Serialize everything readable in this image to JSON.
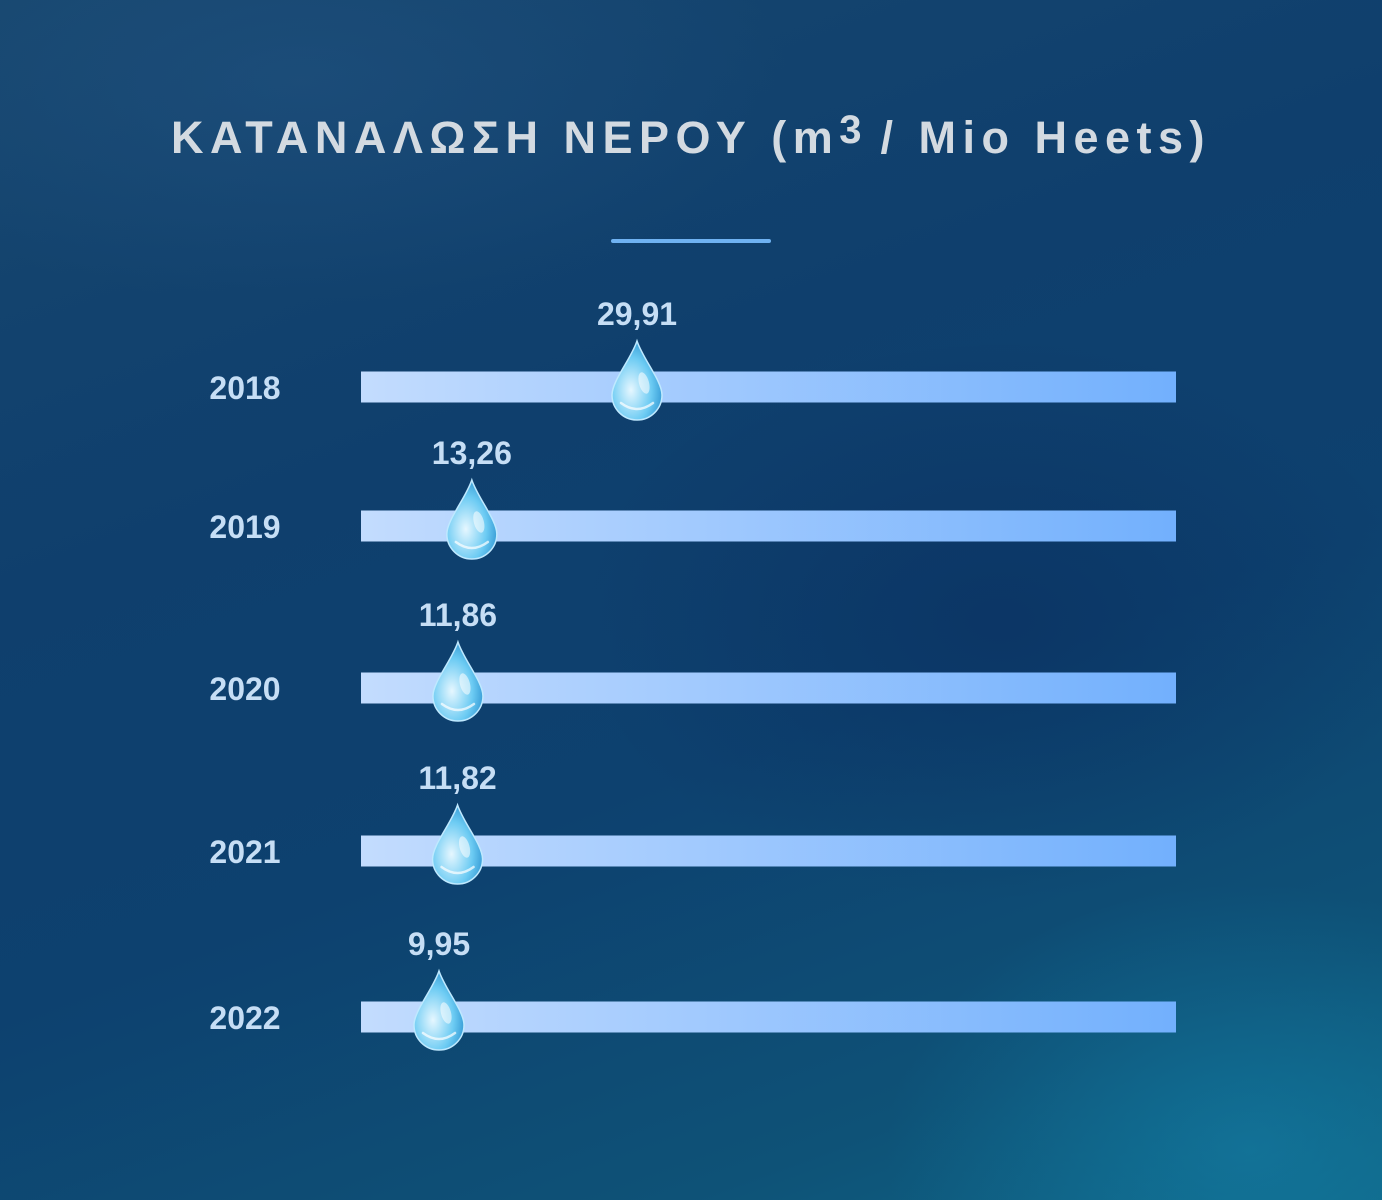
{
  "header": {
    "title_main": "ΚΑΤΑΝΑΛΩΣΗ ΝΕΡΟΥ (m",
    "title_sup": "3",
    "title_tail": " / Mio Heets)"
  },
  "colors": {
    "bar_start": "#c3dcfe",
    "bar_end": "#72b0fd",
    "label_text": "#c6def5",
    "title_text": "#d3dae1",
    "drop_light": "#e6f7ff",
    "drop_mid": "#6ccbf3",
    "drop_dark": "#1e86c8"
  },
  "chart_data": {
    "type": "bar",
    "title": "ΚΑΤΑΝΑΛΩΣΗ ΝΕΡΟΥ (m3 / Mio Heets)",
    "marker_icon": "water-drop-icon",
    "categories": [
      "2018",
      "2019",
      "2020",
      "2021",
      "2022"
    ],
    "values": [
      29.91,
      13.26,
      11.86,
      11.82,
      9.95
    ],
    "value_labels": [
      "29,91",
      "13,26",
      "11,86",
      "11,82",
      "9,95"
    ]
  }
}
